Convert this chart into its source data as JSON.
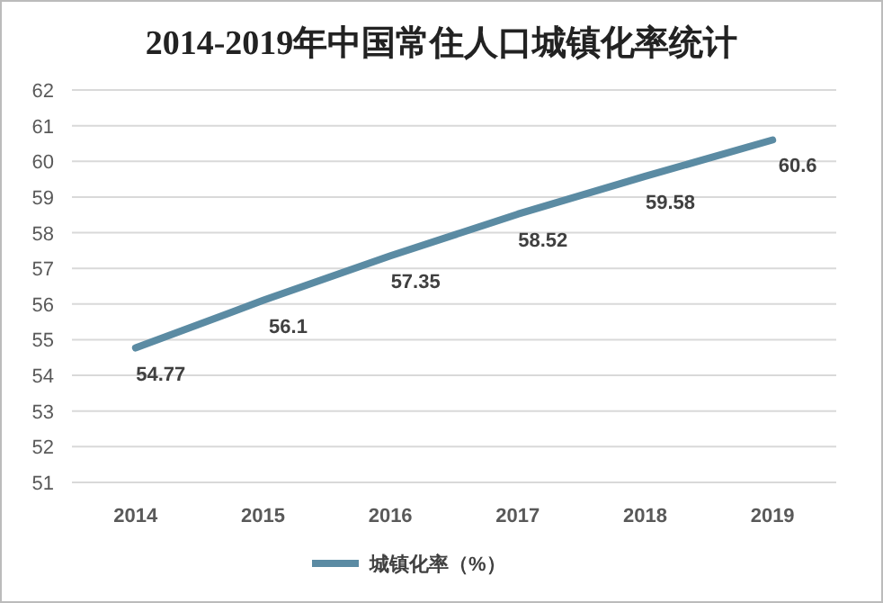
{
  "chart_data": {
    "type": "line",
    "title": "2014-2019年中国常住人口城镇化率统计",
    "categories": [
      "2014",
      "2015",
      "2016",
      "2017",
      "2018",
      "2019"
    ],
    "series": [
      {
        "name": "城镇化率（%）",
        "color": "#5b8ba3",
        "values": [
          54.77,
          56.1,
          57.35,
          58.52,
          59.58,
          60.6
        ]
      }
    ],
    "ylim": [
      51,
      62
    ],
    "yticks": [
      51,
      52,
      53,
      54,
      55,
      56,
      57,
      58,
      59,
      60,
      61,
      62
    ],
    "grid": "y",
    "legend": "bottom",
    "data_labels": true
  }
}
